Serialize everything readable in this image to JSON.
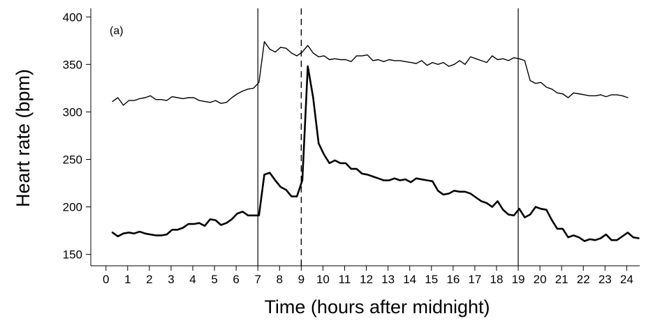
{
  "chart_data": {
    "type": "line",
    "title": "",
    "panel_label": "(a)",
    "xlabel": "Time (hours after midnight)",
    "ylabel": "Heart rate (bpm)",
    "xlim": [
      -0.7,
      24.6
    ],
    "ylim": [
      138,
      409
    ],
    "xticks": [
      0,
      1,
      2,
      3,
      4,
      5,
      6,
      7,
      8,
      9,
      10,
      11,
      12,
      13,
      14,
      15,
      16,
      17,
      18,
      19,
      20,
      21,
      22,
      23,
      24
    ],
    "yticks": [
      150,
      200,
      250,
      300,
      350,
      400
    ],
    "grid": false,
    "legend": "none",
    "reference_lines": [
      {
        "x": 7,
        "style": "solid"
      },
      {
        "x": 9,
        "style": "dashed"
      },
      {
        "x": 19,
        "style": "solid"
      }
    ],
    "series": [
      {
        "color": "#000000",
        "line_weight": "thin",
        "points": [
          [
            0.3,
            311
          ],
          [
            0.55,
            315
          ],
          [
            0.8,
            307
          ],
          [
            1.05,
            312
          ],
          [
            1.3,
            312
          ],
          [
            1.55,
            314
          ],
          [
            1.8,
            315
          ],
          [
            2.05,
            317
          ],
          [
            2.3,
            313
          ],
          [
            2.55,
            313
          ],
          [
            2.8,
            312
          ],
          [
            3.05,
            316
          ],
          [
            3.3,
            315
          ],
          [
            3.55,
            314
          ],
          [
            3.8,
            315
          ],
          [
            4.05,
            315
          ],
          [
            4.3,
            312
          ],
          [
            4.55,
            311
          ],
          [
            4.8,
            310
          ],
          [
            5.05,
            312
          ],
          [
            5.3,
            309
          ],
          [
            5.55,
            310
          ],
          [
            5.8,
            315
          ],
          [
            6.05,
            319
          ],
          [
            6.3,
            322
          ],
          [
            6.55,
            324
          ],
          [
            6.8,
            325
          ],
          [
            7.05,
            331
          ],
          [
            7.3,
            374
          ],
          [
            7.55,
            366
          ],
          [
            7.8,
            363
          ],
          [
            8.05,
            368
          ],
          [
            8.3,
            367
          ],
          [
            8.55,
            362
          ],
          [
            8.8,
            359
          ],
          [
            9.05,
            363
          ],
          [
            9.3,
            370
          ],
          [
            9.55,
            362
          ],
          [
            9.8,
            358
          ],
          [
            10.05,
            359
          ],
          [
            10.3,
            355
          ],
          [
            10.55,
            356
          ],
          [
            10.8,
            355
          ],
          [
            11.05,
            355
          ],
          [
            11.3,
            353
          ],
          [
            11.55,
            359
          ],
          [
            11.8,
            359
          ],
          [
            12.05,
            360
          ],
          [
            12.3,
            354
          ],
          [
            12.55,
            355
          ],
          [
            12.8,
            353
          ],
          [
            13.05,
            355
          ],
          [
            13.3,
            354
          ],
          [
            13.55,
            354
          ],
          [
            13.8,
            353
          ],
          [
            14.05,
            352
          ],
          [
            14.3,
            351
          ],
          [
            14.55,
            354
          ],
          [
            14.8,
            349
          ],
          [
            15.05,
            352
          ],
          [
            15.3,
            350
          ],
          [
            15.55,
            352
          ],
          [
            15.8,
            348
          ],
          [
            16.05,
            350
          ],
          [
            16.3,
            354
          ],
          [
            16.55,
            350
          ],
          [
            16.8,
            358
          ],
          [
            17.05,
            356
          ],
          [
            17.3,
            354
          ],
          [
            17.55,
            352
          ],
          [
            17.8,
            359
          ],
          [
            18.05,
            355
          ],
          [
            18.3,
            356
          ],
          [
            18.55,
            354
          ],
          [
            18.8,
            357
          ],
          [
            19.05,
            356
          ],
          [
            19.3,
            354
          ],
          [
            19.55,
            333
          ],
          [
            19.8,
            330
          ],
          [
            20.05,
            331
          ],
          [
            20.3,
            326
          ],
          [
            20.55,
            324
          ],
          [
            20.8,
            320
          ],
          [
            21.05,
            319
          ],
          [
            21.3,
            315
          ],
          [
            21.55,
            320
          ],
          [
            21.8,
            319
          ],
          [
            22.05,
            318
          ],
          [
            22.3,
            317
          ],
          [
            22.55,
            317
          ],
          [
            22.8,
            318
          ],
          [
            23.05,
            316
          ],
          [
            23.3,
            318
          ],
          [
            23.55,
            318
          ],
          [
            23.8,
            317
          ],
          [
            24.05,
            315
          ]
        ]
      },
      {
        "color": "#000000",
        "line_weight": "thick",
        "points": [
          [
            0.3,
            173
          ],
          [
            0.55,
            169
          ],
          [
            0.8,
            172
          ],
          [
            1.05,
            173
          ],
          [
            1.3,
            172
          ],
          [
            1.55,
            174
          ],
          [
            1.8,
            172
          ],
          [
            2.05,
            171
          ],
          [
            2.3,
            170
          ],
          [
            2.55,
            170
          ],
          [
            2.8,
            171
          ],
          [
            3.05,
            176
          ],
          [
            3.3,
            176
          ],
          [
            3.55,
            178
          ],
          [
            3.8,
            182
          ],
          [
            4.05,
            182
          ],
          [
            4.3,
            183
          ],
          [
            4.55,
            180
          ],
          [
            4.8,
            187
          ],
          [
            5.05,
            186
          ],
          [
            5.3,
            181
          ],
          [
            5.55,
            183
          ],
          [
            5.8,
            187
          ],
          [
            6.05,
            193
          ],
          [
            6.3,
            195
          ],
          [
            6.55,
            191
          ],
          [
            6.8,
            191
          ],
          [
            7.05,
            191
          ],
          [
            7.3,
            234
          ],
          [
            7.55,
            236
          ],
          [
            7.8,
            228
          ],
          [
            8.05,
            221
          ],
          [
            8.3,
            218
          ],
          [
            8.55,
            211
          ],
          [
            8.8,
            211
          ],
          [
            9.05,
            228
          ],
          [
            9.3,
            348
          ],
          [
            9.55,
            315
          ],
          [
            9.8,
            267
          ],
          [
            10.05,
            255
          ],
          [
            10.3,
            246
          ],
          [
            10.55,
            249
          ],
          [
            10.8,
            246
          ],
          [
            11.05,
            246
          ],
          [
            11.3,
            240
          ],
          [
            11.55,
            240
          ],
          [
            11.8,
            235
          ],
          [
            12.05,
            234
          ],
          [
            12.3,
            232
          ],
          [
            12.55,
            230
          ],
          [
            12.8,
            228
          ],
          [
            13.05,
            228
          ],
          [
            13.3,
            230
          ],
          [
            13.55,
            228
          ],
          [
            13.8,
            229
          ],
          [
            14.05,
            226
          ],
          [
            14.3,
            230
          ],
          [
            14.55,
            229
          ],
          [
            14.8,
            228
          ],
          [
            15.05,
            227
          ],
          [
            15.3,
            217
          ],
          [
            15.55,
            213
          ],
          [
            15.8,
            214
          ],
          [
            16.05,
            217
          ],
          [
            16.3,
            216
          ],
          [
            16.55,
            216
          ],
          [
            16.8,
            214
          ],
          [
            17.05,
            210
          ],
          [
            17.3,
            206
          ],
          [
            17.55,
            204
          ],
          [
            17.8,
            200
          ],
          [
            18.05,
            206
          ],
          [
            18.3,
            197
          ],
          [
            18.55,
            192
          ],
          [
            18.8,
            191
          ],
          [
            19.05,
            198
          ],
          [
            19.3,
            189
          ],
          [
            19.55,
            192
          ],
          [
            19.8,
            200
          ],
          [
            20.05,
            198
          ],
          [
            20.3,
            197
          ],
          [
            20.55,
            186
          ],
          [
            20.8,
            177
          ],
          [
            21.05,
            177
          ],
          [
            21.3,
            168
          ],
          [
            21.55,
            170
          ],
          [
            21.8,
            168
          ],
          [
            22.05,
            164
          ],
          [
            22.3,
            166
          ],
          [
            22.55,
            165
          ],
          [
            22.8,
            167
          ],
          [
            23.05,
            171
          ],
          [
            23.3,
            165
          ],
          [
            23.55,
            165
          ],
          [
            23.8,
            169
          ],
          [
            24.05,
            173
          ],
          [
            24.3,
            168
          ],
          [
            24.55,
            167
          ]
        ]
      }
    ]
  }
}
